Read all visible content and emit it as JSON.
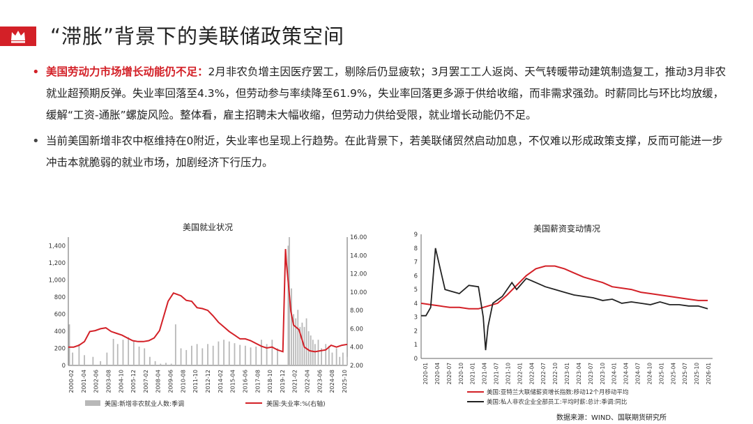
{
  "title": "“滞胀”背景下的美联储政策空间",
  "bullets": [
    {
      "highlight": "美国劳动力市场增长动能仍不足：",
      "text": "2月非农负增主因医疗罢工，剔除后仍显疲软；3月罢工工人返岗、天气转暖带动建筑制造复工，推动3月非农就业超预期反弹。失业率回落至4.3%，但劳动参与率续降至61.9%，失业率回落更多源于供给收缩，而非需求强劲。时薪同比与环比均放缓，缓解“工资-通胀”螺旋风险。整体看，雇主招聘未大幅收缩，但劳动力供给受限，就业增长动能仍不足。"
    },
    {
      "highlight": "",
      "text": "当前美国新增非农中枢维持在0附近，失业率也呈现上行趋势。在此背景下，若美联储贸然启动加息，不仅难以形成政策支撑，反而可能进一步冲击本就脆弱的就业市场，加剧经济下行压力。"
    }
  ],
  "source": "数据来源：WIND、国联期货研究所",
  "colors": {
    "accent": "#d32027",
    "bars": "#b8b8b8",
    "line_red": "#d32027",
    "line_black": "#222222"
  },
  "chart_data": [
    {
      "type": "bar+line",
      "title": "美国就业状况",
      "x_ticks": [
        "2000-02",
        "2001-04",
        "2002-06",
        "2003-08",
        "2004-10",
        "2005-12",
        "2007-02",
        "2008-04",
        "2009-06",
        "2010-08",
        "2011-10",
        "2012-12",
        "2014-02",
        "2015-04",
        "2016-06",
        "2017-08",
        "2018-10",
        "2019-12",
        "2021-02",
        "2022-04",
        "2023-06",
        "2024-08",
        "2025-10"
      ],
      "y_left": {
        "ylim": [
          0,
          1500
        ],
        "ticks": [
          "0",
          "200",
          "400",
          "600",
          "800",
          "1,000",
          "1,200",
          "1,400"
        ]
      },
      "y_right": {
        "ylim": [
          2,
          16
        ],
        "ticks": [
          "2.00",
          "4.00",
          "6.00",
          "8.00",
          "10.00",
          "12.00",
          "14.00",
          "16.00"
        ]
      },
      "series": [
        {
          "name": "美国:新增非农就业人数:季调",
          "type": "bar",
          "axis": "left",
          "x": [
            2000.1,
            2000.4,
            2001.0,
            2001.5,
            2002.3,
            2003.0,
            2003.6,
            2004.2,
            2004.6,
            2005.1,
            2005.6,
            2006.1,
            2006.6,
            2007.1,
            2007.6,
            2008.1,
            2008.6,
            2009.1,
            2009.6,
            2010.0,
            2010.5,
            2011.0,
            2011.5,
            2012.0,
            2012.5,
            2013.0,
            2013.5,
            2014.0,
            2014.5,
            2015.0,
            2015.5,
            2016.0,
            2016.5,
            2017.0,
            2017.5,
            2018.0,
            2018.5,
            2019.0,
            2019.5,
            2020.5,
            2020.6,
            2020.8,
            2021.0,
            2021.2,
            2021.4,
            2021.6,
            2021.8,
            2022.0,
            2022.2,
            2022.4,
            2022.6,
            2022.8,
            2023.0,
            2023.3,
            2023.6,
            2024.0,
            2024.3,
            2024.6,
            2025.0,
            2025.3,
            2025.6,
            2026.0
          ],
          "values": [
            480,
            150,
            250,
            120,
            100,
            50,
            150,
            310,
            250,
            300,
            330,
            280,
            220,
            200,
            100,
            50,
            20,
            30,
            20,
            480,
            200,
            180,
            230,
            250,
            200,
            250,
            230,
            280,
            300,
            280,
            260,
            240,
            230,
            210,
            220,
            300,
            250,
            300,
            200,
            1400,
            1500,
            900,
            600,
            550,
            650,
            450,
            500,
            450,
            550,
            400,
            350,
            300,
            250,
            300,
            200,
            250,
            230,
            150,
            200,
            100,
            150,
            100
          ]
        },
        {
          "name": "美国:失业率:%(右轴)",
          "type": "line",
          "axis": "right",
          "x": [
            2000.0,
            2000.5,
            2001.0,
            2001.5,
            2002.0,
            2002.5,
            2003.0,
            2003.5,
            2004.0,
            2004.5,
            2005.0,
            2005.5,
            2006.0,
            2006.5,
            2007.0,
            2007.5,
            2008.0,
            2008.5,
            2009.0,
            2009.3,
            2009.8,
            2010.5,
            2011.0,
            2011.5,
            2012.0,
            2012.5,
            2013.0,
            2013.5,
            2014.0,
            2014.5,
            2015.0,
            2015.5,
            2016.0,
            2016.5,
            2017.0,
            2017.5,
            2018.0,
            2018.5,
            2019.0,
            2019.5,
            2020.0,
            2020.25,
            2020.33,
            2020.5,
            2020.75,
            2021.0,
            2021.5,
            2022.0,
            2022.5,
            2023.0,
            2023.5,
            2024.0,
            2024.5,
            2025.0,
            2025.5,
            2026.0
          ],
          "values": [
            4.0,
            4.0,
            4.2,
            4.6,
            5.7,
            5.8,
            6.0,
            6.1,
            5.7,
            5.5,
            5.3,
            5.0,
            4.7,
            4.6,
            4.6,
            4.7,
            5.0,
            5.8,
            7.8,
            9.0,
            9.9,
            9.6,
            9.1,
            9.0,
            8.3,
            8.2,
            8.0,
            7.4,
            6.7,
            6.2,
            5.7,
            5.3,
            4.9,
            4.9,
            4.7,
            4.4,
            4.1,
            3.9,
            4.0,
            3.7,
            3.5,
            14.7,
            13.2,
            11.1,
            7.9,
            6.4,
            5.9,
            4.0,
            3.6,
            3.5,
            3.6,
            3.7,
            4.2,
            4.0,
            4.2,
            4.3
          ]
        }
      ]
    },
    {
      "type": "line",
      "title": "美国薪资变动情况",
      "x_ticks": [
        "2020-01",
        "2020-04",
        "2020-07",
        "2020-10",
        "2021-01",
        "2021-04",
        "2021-07",
        "2021-10",
        "2022-01",
        "2022-04",
        "2022-07",
        "2022-10",
        "2023-01",
        "2023-04",
        "2023-07",
        "2023-10",
        "2024-01",
        "2024-04",
        "2024-07",
        "2024-10",
        "2025-01",
        "2025-04",
        "2025-07",
        "2025-10",
        "2026-01"
      ],
      "ylim": [
        0,
        9
      ],
      "y_ticks": [
        "0",
        "1",
        "2",
        "3",
        "4",
        "5",
        "6",
        "7",
        "8",
        "9"
      ],
      "series": [
        {
          "name": "美国:亚特兰大联储薪资增长指数:移动12个月移动平均",
          "color": "red",
          "x": [
            2020.0,
            2020.2,
            2020.4,
            2020.6,
            2020.8,
            2021.0,
            2021.2,
            2021.4,
            2021.6,
            2021.8,
            2022.0,
            2022.2,
            2022.4,
            2022.6,
            2022.8,
            2023.0,
            2023.2,
            2023.4,
            2023.6,
            2023.8,
            2024.0,
            2024.2,
            2024.4,
            2024.6,
            2024.8,
            2025.0,
            2025.2,
            2025.4,
            2025.6,
            2025.8,
            2026.0
          ],
          "values": [
            4.0,
            3.9,
            3.8,
            3.7,
            3.7,
            3.6,
            3.6,
            3.8,
            4.0,
            4.6,
            5.3,
            6.0,
            6.5,
            6.7,
            6.7,
            6.5,
            6.2,
            5.9,
            5.7,
            5.5,
            5.2,
            5.1,
            5.0,
            4.8,
            4.7,
            4.6,
            4.5,
            4.4,
            4.3,
            4.2,
            4.2
          ]
        },
        {
          "name": "美国:私人非农企业全部员工:平均时薪:总计:季调:同比",
          "color": "black",
          "x": [
            2020.0,
            2020.1,
            2020.2,
            2020.3,
            2020.4,
            2020.5,
            2020.6,
            2020.8,
            2021.0,
            2021.2,
            2021.3,
            2021.35,
            2021.4,
            2021.5,
            2021.7,
            2021.9,
            2022.0,
            2022.2,
            2022.4,
            2022.6,
            2022.8,
            2023.0,
            2023.2,
            2023.4,
            2023.6,
            2023.8,
            2024.0,
            2024.2,
            2024.4,
            2024.6,
            2024.8,
            2025.0,
            2025.2,
            2025.4,
            2025.6,
            2025.8,
            2026.0
          ],
          "values": [
            3.1,
            3.1,
            3.7,
            8.0,
            6.5,
            5.0,
            4.9,
            4.7,
            5.3,
            5.2,
            3.0,
            0.6,
            2.3,
            4.0,
            4.5,
            5.5,
            5.0,
            5.8,
            5.5,
            5.2,
            5.0,
            4.8,
            4.6,
            4.5,
            4.4,
            4.2,
            4.3,
            4.0,
            4.1,
            4.0,
            3.9,
            4.1,
            3.9,
            3.9,
            3.8,
            3.8,
            3.6
          ]
        }
      ]
    }
  ]
}
